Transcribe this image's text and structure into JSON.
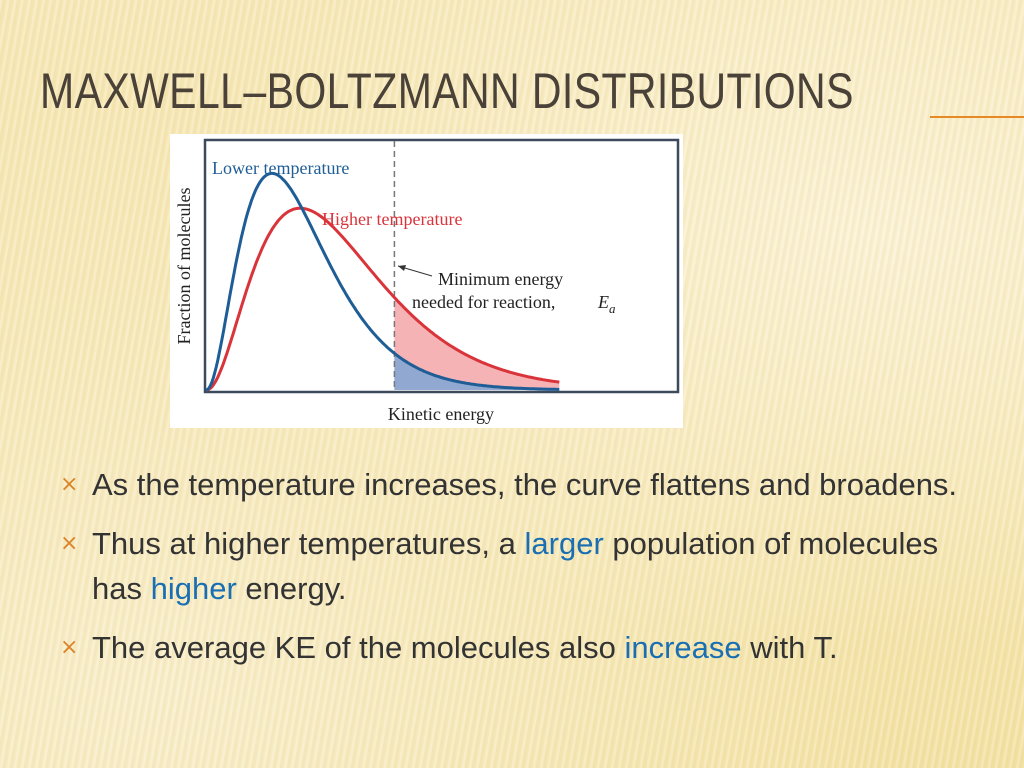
{
  "slide": {
    "title": "Maxwell–Boltzmann Distributions"
  },
  "chart_data": {
    "type": "line",
    "xlabel": "Kinetic energy",
    "ylabel": "Fraction of molecules",
    "series": [
      {
        "name": "Lower temperature",
        "color": "#1f5d96",
        "peak_x": 0.14,
        "peak_y": 0.87
      },
      {
        "name": "Higher temperature",
        "color": "#d9343a",
        "peak_x": 0.2,
        "peak_y": 0.73
      }
    ],
    "annotation": {
      "line1": "Minimum energy",
      "line2": "needed for reaction,",
      "symbol": "E",
      "subscript": "a",
      "threshold_x": 0.4
    },
    "grid": false,
    "legend": "inline labels"
  },
  "bullets": [
    {
      "marker": "×",
      "parts": [
        {
          "text": "As the temperature increases, the curve flattens and broadens.",
          "highlight": false
        }
      ]
    },
    {
      "marker": "×",
      "parts": [
        {
          "text": "Thus at higher temperatures, a ",
          "highlight": false
        },
        {
          "text": "larger",
          "highlight": true
        },
        {
          "text": " population of molecules has ",
          "highlight": false
        },
        {
          "text": "higher",
          "highlight": true
        },
        {
          "text": " energy.",
          "highlight": false
        }
      ]
    },
    {
      "marker": "×",
      "parts": [
        {
          "text": "The average KE of the molecules also ",
          "highlight": false
        },
        {
          "text": "increase",
          "highlight": true
        },
        {
          "text": " with T.",
          "highlight": false
        }
      ]
    }
  ],
  "colors": {
    "accent": "#e58a24",
    "highlight": "#1a6fb3",
    "bullet_marker": "#d9862b"
  }
}
